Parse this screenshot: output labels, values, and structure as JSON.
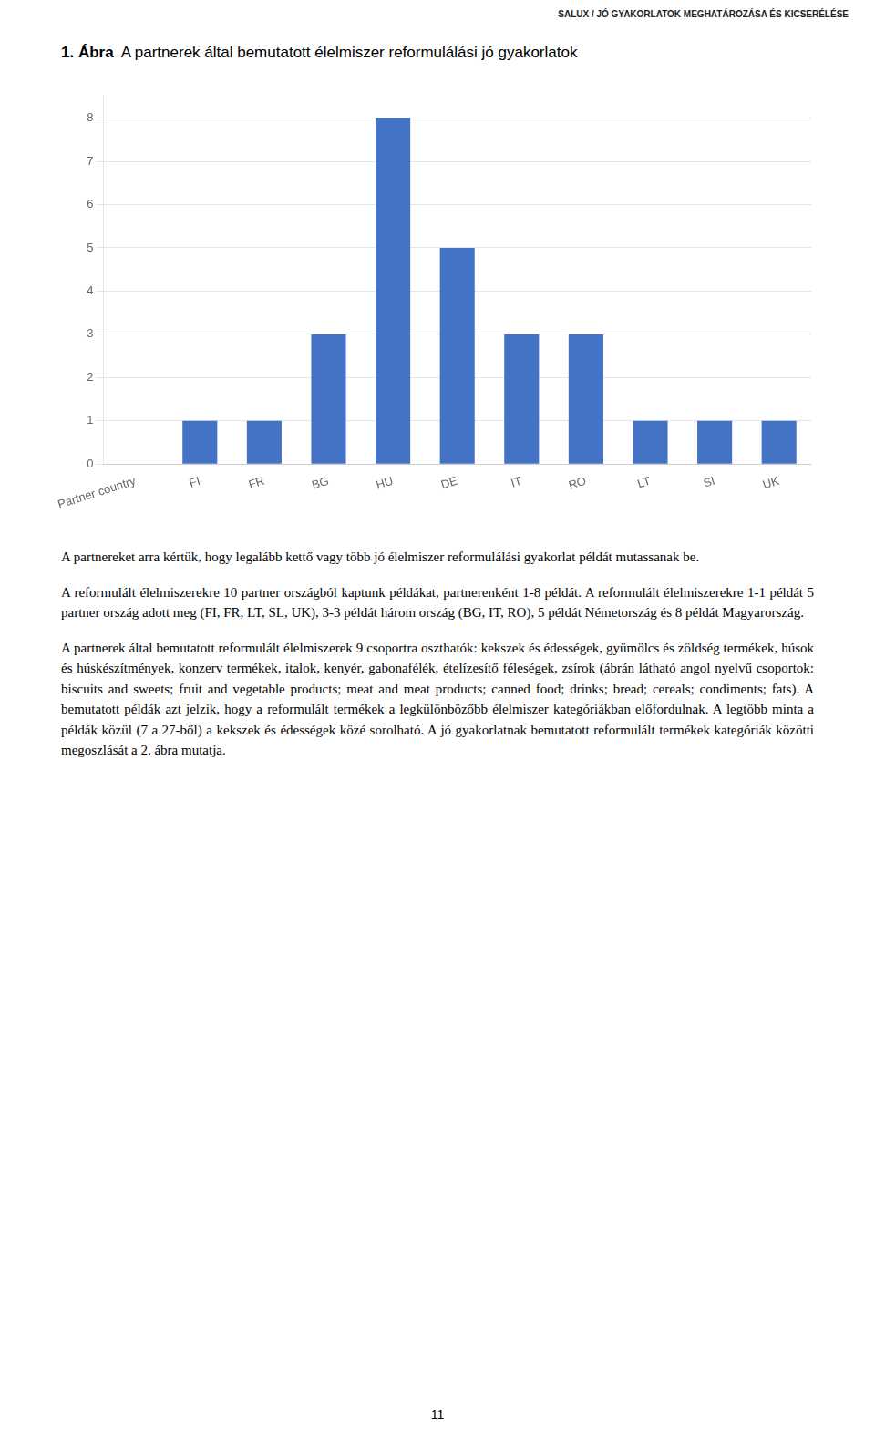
{
  "chart_data": {
    "type": "bar",
    "title": "1. Ábra",
    "subtitle": "A partnerek által bemutatott élelmiszer reformulálási jó gyakorlatok",
    "categories": [
      "Partner country",
      "FI",
      "FR",
      "BG",
      "HU",
      "DE",
      "IT",
      "RO",
      "LT",
      "SI",
      "UK"
    ],
    "values": [
      0,
      1,
      1,
      3,
      8,
      5,
      3,
      3,
      1,
      1,
      1
    ],
    "color": "#4472C4",
    "ylim": [
      0,
      8.5
    ],
    "yticks": [
      0,
      1,
      2,
      3,
      4,
      5,
      6,
      7,
      8
    ],
    "grid": true,
    "annotations": [
      "SALUX / JÓ GYAKORLATOK MEGHATÁROZÁSA ÉS KICSERÉLÉSE",
      "A partnereket arra kértük, hogy legalább kettő vagy több jó élelmiszer reformulálási gyakorlat példát mutassanak be.",
      "A reformulált élelmiszerekre 10 partner országból kaptunk példákat, partnerenként 1-8 példát. A reformulált élelmiszerekre 1-1 példát 5 partner ország adott meg (FI, FR, LT, SL, UK), 3-3 példát három ország (BG, IT, RO), 5 példát Németország és 8 példát Magyarország.",
      "A partnerek által bemutatott reformulált élelmiszerek 9 csoportra oszthatók: kekszek és édességek, gyümölcs és zöldség termékek, húsok és húskészítmények, konzerv termékek, italok, kenyér, gabonafélék, ételízesítő féleségek, zsírok (ábrán látható angol nyelvű csoportok: biscuits and sweets; fruit and vegetable products; meat and meat products; canned food; drinks; bread; cereals; condiments; fats). A bemutatott példák azt jelzik, hogy a reformulált termékek a legkülönbözőbb élelmiszer kategóriákban előfordulnak. A legtöbb minta a példák közül (7 a 27-ből) a kekszek és édességek közé sorolható. A jó gyakorlatnak bemutatott reformulált termékek kategóriák közötti megoszlását a 2. ábra mutatja.",
      "11"
    ]
  }
}
